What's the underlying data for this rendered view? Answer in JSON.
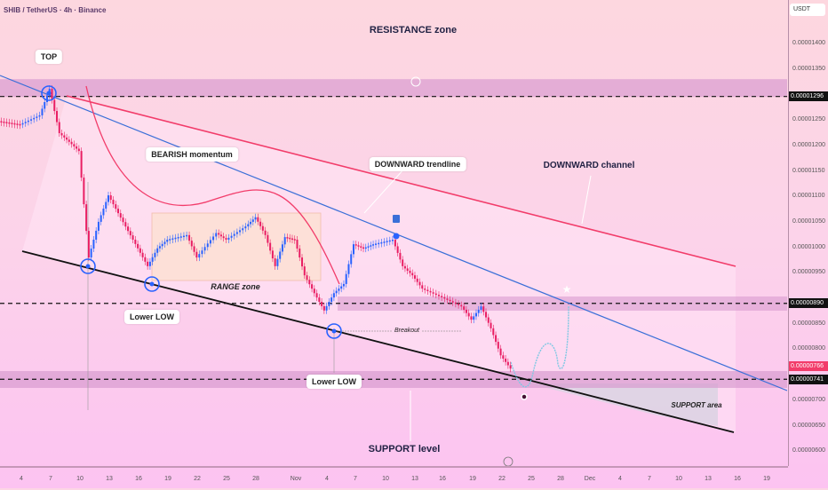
{
  "header": {
    "symbol_title": "SHIB / TetherUS · 4h · Binance",
    "currency_button": "USDT"
  },
  "colors": {
    "up": "#2962ff",
    "down": "#e91e63",
    "resistance_line": "#f23c6a",
    "trendline": "#3a6fd8",
    "support_line": "#111111",
    "projection": "#7ec8e3",
    "zone": "#d89bd0",
    "range_zone": "#fde1d6"
  },
  "chart_data": {
    "type": "candlestick",
    "title": "",
    "xlabel": "",
    "ylabel": "",
    "ylim": [
      5.7e-06,
      1.45e-05
    ],
    "grid": false,
    "x_ticks": [
      "4",
      "7",
      "10",
      "13",
      "16",
      "19",
      "22",
      "25",
      "28",
      "Nov",
      "4",
      "7",
      "10",
      "13",
      "16",
      "19",
      "22",
      "25",
      "28",
      "Dec",
      "4",
      "7",
      "10",
      "13",
      "16",
      "19"
    ],
    "y_ticks": [
      "0.00001400",
      "0.00001350",
      "0.00001250",
      "0.00001200",
      "0.00001150",
      "0.00001100",
      "0.00001050",
      "0.00001000",
      "0.00000950",
      "0.00000850",
      "0.00000800",
      "0.00000700",
      "0.00000650",
      "0.00000600"
    ],
    "series": [
      {
        "points": [
          [
            "2024-10-01",
            1.25e-05
          ],
          [
            "2024-10-04",
            1.241e-05
          ],
          [
            "2024-10-06",
            1.259e-05
          ],
          [
            "2024-10-07",
            1.311e-05
          ],
          [
            "2024-10-08",
            1.224e-05
          ],
          [
            "2024-10-09",
            1.207e-05
          ],
          [
            "2024-10-10",
            1.189e-05
          ],
          [
            "2024-10-11",
            9.8e-06
          ],
          [
            "2024-10-12",
            1.05e-05
          ],
          [
            "2024-10-13",
            1.102e-05
          ],
          [
            "2024-10-14",
            1.067e-05
          ],
          [
            "2024-10-15",
            1.032e-05
          ],
          [
            "2024-10-16",
            9.98e-06
          ],
          [
            "2024-10-17",
            9.63e-06
          ],
          [
            "2024-10-18",
            9.98e-06
          ],
          [
            "2024-10-19",
            1.015e-05
          ],
          [
            "2024-10-21",
            1.024e-05
          ],
          [
            "2024-10-22",
            9.8e-06
          ],
          [
            "2024-10-24",
            1.028e-05
          ],
          [
            "2024-10-25",
            1.015e-05
          ],
          [
            "2024-10-27",
            1.041e-05
          ],
          [
            "2024-10-28",
            1.059e-05
          ],
          [
            "2024-10-29",
            1.024e-05
          ],
          [
            "2024-10-30",
            9.63e-06
          ],
          [
            "2024-10-31",
            1.02e-05
          ],
          [
            "2024-11-01",
            1.015e-05
          ],
          [
            "2024-11-02",
            9.45e-06
          ],
          [
            "2024-11-03",
            9.1e-06
          ],
          [
            "2024-11-04",
            8.76e-06
          ],
          [
            "2024-11-05",
            9.1e-06
          ],
          [
            "2024-11-06",
            9.28e-06
          ],
          [
            "2024-11-07",
            1.006e-05
          ],
          [
            "2024-11-08",
            9.98e-06
          ],
          [
            "2024-11-09",
            1.006e-05
          ],
          [
            "2024-11-11",
            1.015e-05
          ],
          [
            "2024-11-12",
            9.63e-06
          ],
          [
            "2024-11-13",
            9.45e-06
          ],
          [
            "2024-11-14",
            9.19e-06
          ],
          [
            "2024-11-16",
            9.02e-06
          ],
          [
            "2024-11-18",
            8.84e-06
          ],
          [
            "2024-11-19",
            8.58e-06
          ],
          [
            "2024-11-20",
            8.84e-06
          ],
          [
            "2024-11-21",
            8.41e-06
          ],
          [
            "2024-11-22",
            7.88e-06
          ],
          [
            "2024-11-23",
            7.62e-06
          ]
        ]
      }
    ],
    "levels": [
      {
        "value": 1.296e-05,
        "label": "0.00001296",
        "color": "#000000"
      },
      {
        "value": 8.9e-06,
        "label": "0.00000890",
        "color": "#000000"
      },
      {
        "value": 7.66e-06,
        "label": "0.00000766",
        "color": "#f23c6a"
      },
      {
        "value": 7.41e-06,
        "label": "0.00000741",
        "color": "#000000"
      }
    ],
    "annotations": {
      "resistance_zone": "RESISTANCE zone",
      "top": "TOP",
      "bearish_momentum": "BEARISH momentum",
      "downward_trendline": "DOWNWARD trendline",
      "downward_channel": "DOWNWARD channel",
      "range_zone": "RANGE zone",
      "lower_low_1": "Lower LOW",
      "lower_low_2": "Lower LOW",
      "breakout": "Breakout",
      "support_area": "SUPPORT area",
      "support_level": "SUPPORT level"
    }
  }
}
